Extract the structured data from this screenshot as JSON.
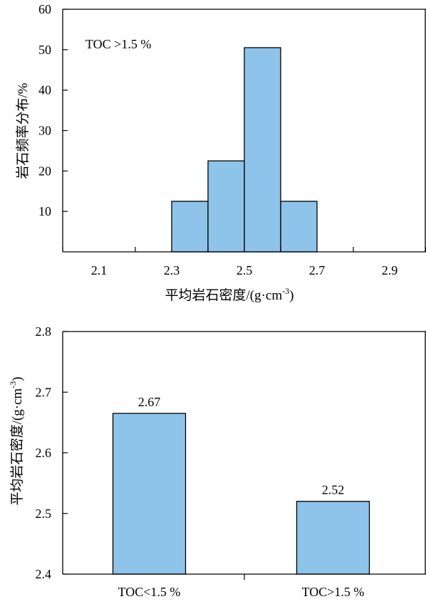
{
  "chart_data": [
    {
      "type": "bar",
      "subtype": "histogram",
      "annotation": "TOC >1.5 %",
      "xlabel_prefix": "平均岩石密度/(g·cm",
      "xlabel_exp": "-3",
      "xlabel_suffix": ")",
      "ylabel": "岩石频率分布/%",
      "xlim": [
        2.0,
        3.0
      ],
      "ylim": [
        0,
        60
      ],
      "xticks": [
        2.1,
        2.3,
        2.5,
        2.7,
        2.9
      ],
      "xtick_labels": [
        "2.1",
        "2.3",
        "2.5",
        "2.7",
        "2.9"
      ],
      "yticks": [
        10,
        20,
        30,
        40,
        50,
        60
      ],
      "ytick_labels": [
        "10",
        "20",
        "30",
        "40",
        "50",
        "60"
      ],
      "bins": [
        {
          "x0": 2.3,
          "x1": 2.4,
          "value": 12.5
        },
        {
          "x0": 2.4,
          "x1": 2.5,
          "value": 22.5
        },
        {
          "x0": 2.5,
          "x1": 2.6,
          "value": 50.5
        },
        {
          "x0": 2.6,
          "x1": 2.7,
          "value": 12.5
        }
      ],
      "bar_color": "#8ec4ea",
      "grid": false
    },
    {
      "type": "bar",
      "categories": [
        "TOC<1.5 %",
        "TOC>1.5 %"
      ],
      "values": [
        2.665,
        2.52
      ],
      "data_labels": [
        "2.67",
        "2.52"
      ],
      "ylabel_prefix": "平均岩石密度/(g·cm",
      "ylabel_exp": "-3",
      "ylabel_suffix": ")",
      "ylim": [
        2.4,
        2.8
      ],
      "yticks": [
        2.4,
        2.5,
        2.6,
        2.7,
        2.8
      ],
      "ytick_labels": [
        "2.4",
        "2.5",
        "2.6",
        "2.7",
        "2.8"
      ],
      "bar_color": "#8ec4ea",
      "grid": false
    }
  ]
}
